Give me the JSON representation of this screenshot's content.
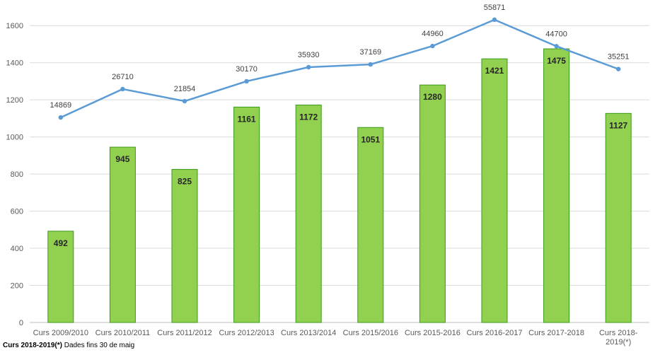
{
  "chart_data": {
    "type": "bar+line",
    "categories": [
      "Curs 2009/2010",
      "Curs 2010/2011",
      "Curs 2011/2012",
      "Curs 2012/2013",
      "Curs 2013/2014",
      "Curs 2015/2016",
      "Curs 2015-2016",
      "Curs 2016-2017",
      "Curs 2017-2018",
      "Curs 2018-2019(*)"
    ],
    "category_lines": [
      [
        "Curs 2009/2010"
      ],
      [
        "Curs 2010/2011"
      ],
      [
        "Curs 2011/2012"
      ],
      [
        "Curs 2012/2013"
      ],
      [
        "Curs 2013/2014"
      ],
      [
        "Curs 2015/2016"
      ],
      [
        "Curs 2015-2016"
      ],
      [
        "Curs 2016-2017"
      ],
      [
        "Curs 2017-2018"
      ],
      [
        "Curs 2018-",
        "2019(*)"
      ]
    ],
    "series": [
      {
        "kind": "bar",
        "values": [
          492,
          945,
          825,
          1161,
          1172,
          1051,
          1280,
          1421,
          1475,
          1127
        ],
        "labels": [
          "492",
          "945",
          "825",
          "1161",
          "1172",
          "1051",
          "1280",
          "1421",
          "1475",
          "1127"
        ],
        "color": "#92d050",
        "border": "#3a9a1a"
      },
      {
        "kind": "line",
        "values": [
          14869,
          26710,
          21854,
          30170,
          35930,
          37169,
          44960,
          55871,
          44700,
          35251
        ],
        "labels": [
          "14869",
          "26710",
          "21854",
          "30170",
          "35930",
          "37169",
          "44960",
          "55871",
          "44700",
          "35251"
        ],
        "plotted_on_left_axis": [
          1105,
          1258,
          1193,
          1300,
          1376,
          1391,
          1490,
          1632,
          1489,
          1366
        ],
        "color": "#5b9bd5"
      }
    ],
    "ylim": [
      0,
      1700
    ],
    "yticks": [
      0,
      200,
      400,
      600,
      800,
      1000,
      1200,
      1400,
      1600
    ],
    "title": "",
    "xlabel": "",
    "ylabel": "",
    "grid": true,
    "legend": "none"
  },
  "footnote": {
    "bold": "Curs 2018-2019(*)",
    "text": " Dades fins 30 de maig"
  }
}
